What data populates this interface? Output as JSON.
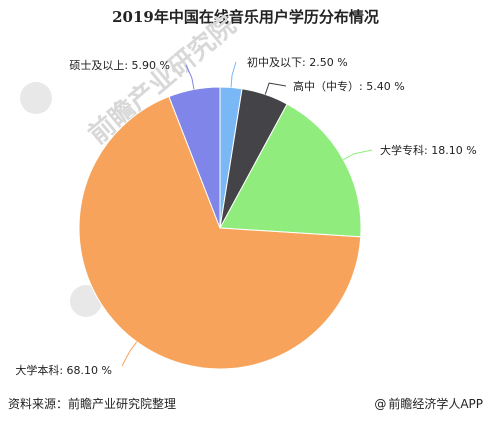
{
  "chart_data": {
    "type": "pie",
    "title": "2019年中国在线音乐用户学历分布情况",
    "slices": [
      {
        "label": "初中及以下",
        "value": 2.5,
        "display": "初中及以下: 2.50 %",
        "color": "#7ab8f5"
      },
      {
        "label": "高中（中专）",
        "value": 5.4,
        "display": "高中（中专）: 5.40 %",
        "color": "#434348"
      },
      {
        "label": "大学专科",
        "value": 18.1,
        "display": "大学专科: 18.10 %",
        "color": "#90ed7d"
      },
      {
        "label": "大学本科",
        "value": 68.1,
        "display": "大学本科: 68.10 %",
        "color": "#f7a35c"
      },
      {
        "label": "硕士及以上",
        "value": 5.9,
        "display": "硕士及以上: 5.90 %",
        "color": "#8085e9"
      }
    ]
  },
  "footer": {
    "source": "资料来源：前瞻产业研究院整理",
    "credit": "前瞻经济学人APP",
    "credit_at": "@"
  },
  "watermarks": {
    "text": "前瞻产业研究院"
  }
}
